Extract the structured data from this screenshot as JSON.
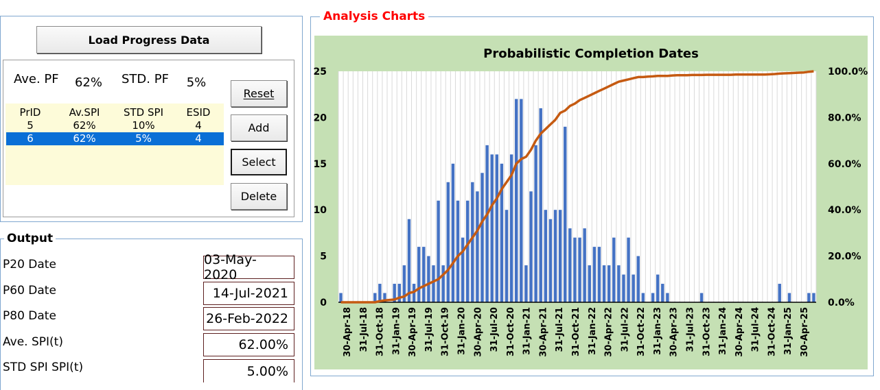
{
  "left_panel": {
    "load_button": "Load Progress Data",
    "ave_pf_label": "Ave. PF",
    "ave_pf_value": "62%",
    "std_pf_label": "STD. PF",
    "std_pf_value": "5%",
    "table": {
      "headers": [
        "PrID",
        "Av.SPI",
        "STD SPI",
        "ESID"
      ],
      "rows": [
        [
          "5",
          "62%",
          "10%",
          "4"
        ],
        [
          "6",
          "62%",
          "5%",
          "4"
        ]
      ],
      "selected_row": 1
    },
    "buttons": {
      "reset": "Reset",
      "add": "Add",
      "select": "Select",
      "delete": "Delete"
    }
  },
  "output": {
    "title": "Output",
    "fields": [
      {
        "label": "P20 Date",
        "value": "03-May-2020"
      },
      {
        "label": "P60 Date",
        "value": "14-Jul-2021"
      },
      {
        "label": "P80 Date",
        "value": "26-Feb-2022"
      },
      {
        "label": "Ave. SPI(t)",
        "value": "62.00%"
      },
      {
        "label": "STD SPI SPI(t)",
        "value": "5.00%"
      }
    ]
  },
  "analysis": {
    "title": "Analysis Charts",
    "title_color": "#ff0000",
    "plot_bg": "#c5e0b4",
    "bar_color": "#4472c4",
    "line_color": "#c55a11"
  },
  "chart_data": {
    "type": "bar",
    "title": "Probabilistic Completion Dates",
    "xlabel": "",
    "ylabel": "",
    "ylim": [
      0,
      25
    ],
    "y_ticks": [
      "0",
      "5",
      "10",
      "15",
      "20",
      "25"
    ],
    "y2lim": [
      0,
      1
    ],
    "y2_ticks": [
      "0.0%",
      "20.0%",
      "40.0%",
      "60.0%",
      "80.0%",
      "100.0%"
    ],
    "grid": true,
    "x_tick_labels": [
      "30-Apr-18",
      "31-Jul-18",
      "31-Oct-18",
      "31-Jan-19",
      "30-Apr-19",
      "31-Jul-19",
      "31-Oct-19",
      "31-Jan-20",
      "30-Apr-20",
      "31-Jul-20",
      "31-Oct-20",
      "31-Jan-21",
      "30-Apr-21",
      "31-Jul-21",
      "31-Oct-21",
      "31-Jan-22",
      "30-Apr-22",
      "31-Jul-22",
      "31-Oct-22",
      "31-Jan-23",
      "30-Apr-23",
      "31-Jul-23",
      "31-Oct-23",
      "31-Jan-24",
      "30-Apr-24",
      "31-Jul-24",
      "31-Oct-24",
      "31-Jan-25",
      "30-Apr-25"
    ],
    "series": [
      {
        "kind": "bar",
        "axis": "left",
        "values": [
          1,
          0,
          0,
          0,
          0,
          0,
          0,
          1,
          2,
          1,
          0,
          2,
          2,
          4,
          9,
          2,
          6,
          6,
          5,
          4,
          11,
          4,
          13,
          15,
          11,
          7,
          11,
          13,
          12,
          14,
          17,
          16,
          16,
          15,
          10,
          16,
          22,
          22,
          4,
          12,
          17,
          21,
          10,
          9,
          10,
          10,
          19,
          8,
          7,
          7,
          8,
          4,
          6,
          6,
          4,
          4,
          7,
          4,
          3,
          7,
          3,
          5,
          1,
          0,
          1,
          3,
          2,
          1,
          0,
          0,
          0,
          0,
          0,
          0,
          1,
          0,
          0,
          0,
          0,
          0,
          0,
          0,
          0,
          0,
          0,
          0,
          0,
          0,
          0,
          0,
          2,
          0,
          1,
          0,
          0,
          0,
          1,
          1
        ]
      },
      {
        "kind": "line",
        "axis": "right",
        "values": [
          0.0,
          0.0,
          0.0,
          0.0,
          0.0,
          0.0,
          0.0,
          0.0,
          0.005,
          0.008,
          0.01,
          0.012,
          0.02,
          0.025,
          0.04,
          0.045,
          0.06,
          0.07,
          0.08,
          0.09,
          0.1,
          0.12,
          0.14,
          0.17,
          0.2,
          0.22,
          0.25,
          0.28,
          0.31,
          0.35,
          0.38,
          0.42,
          0.45,
          0.49,
          0.52,
          0.55,
          0.6,
          0.62,
          0.63,
          0.66,
          0.7,
          0.73,
          0.75,
          0.77,
          0.79,
          0.82,
          0.83,
          0.85,
          0.86,
          0.875,
          0.885,
          0.895,
          0.905,
          0.915,
          0.925,
          0.935,
          0.945,
          0.955,
          0.96,
          0.965,
          0.97,
          0.975,
          0.975,
          0.977,
          0.978,
          0.98,
          0.98,
          0.98,
          0.982,
          0.983,
          0.983,
          0.983,
          0.984,
          0.984,
          0.984,
          0.985,
          0.985,
          0.985,
          0.985,
          0.985,
          0.985,
          0.986,
          0.986,
          0.986,
          0.986,
          0.986,
          0.986,
          0.986,
          0.987,
          0.988,
          0.99,
          0.991,
          0.992,
          0.993,
          0.994,
          0.995,
          0.998,
          1.0
        ]
      }
    ]
  }
}
